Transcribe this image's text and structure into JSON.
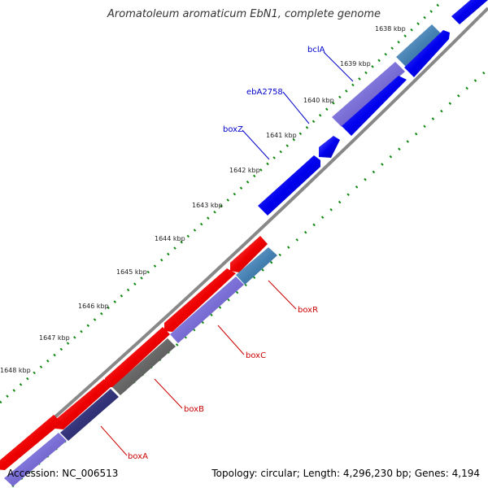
{
  "title": "Aromatoleum aromaticum EbN1, complete genome",
  "accession": "Accession: NC_006513",
  "summary": "Topology: circular; Length: 4,296,230 bp; Genes: 4,194",
  "ticks": [
    "1638 kbp",
    "1639 kbp",
    "1640 kbp",
    "1641 kbp",
    "1642 kbp",
    "1643 kbp",
    "1644 kbp",
    "1645 kbp",
    "1646 kbp",
    "1647 kbp",
    "1648 kbp"
  ],
  "genes_forward": [
    "bclA",
    "ebA2758",
    "boxZ"
  ],
  "genes_reverse": [
    "boxR",
    "boxC",
    "boxB",
    "boxA"
  ],
  "colors": {
    "forward_cds": "#0000ee",
    "reverse_cds": "#ee0000",
    "tick_marks": "#118811",
    "backbone": "#888888",
    "label_forward": "#0000cc",
    "label_reverse": "#cc0000"
  }
}
